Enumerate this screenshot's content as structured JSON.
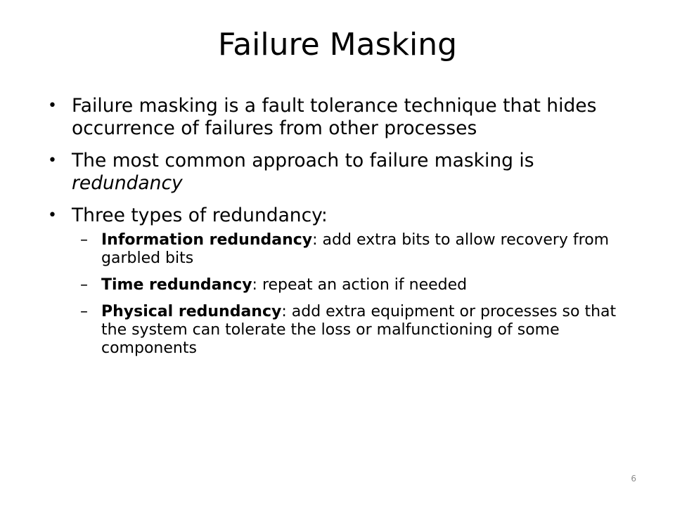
{
  "slide": {
    "title": "Failure Masking",
    "bullets": [
      {
        "text": "Failure masking is a fault tolerance technique that hides occurrence of failures from other processes"
      },
      {
        "text_before": "The most common approach to failure masking is ",
        "text_emphasis": "redundancy"
      },
      {
        "text": "Three types of redundancy:",
        "sub_items": [
          {
            "term": "Information redundancy",
            "description": ": add extra bits to allow recovery from garbled bits"
          },
          {
            "term": "Time redundancy",
            "description": ": repeat an action if needed"
          },
          {
            "term": "Physical redundancy",
            "description": ": add extra equipment or processes so that the system can tolerate the loss or malfunctioning of some components"
          }
        ]
      }
    ],
    "bullet_glyph": "•",
    "dash_glyph": "–",
    "page_number": "6"
  },
  "colors": {
    "background": "#ffffff",
    "text": "#000000",
    "page_number": "#8c8c8c"
  }
}
